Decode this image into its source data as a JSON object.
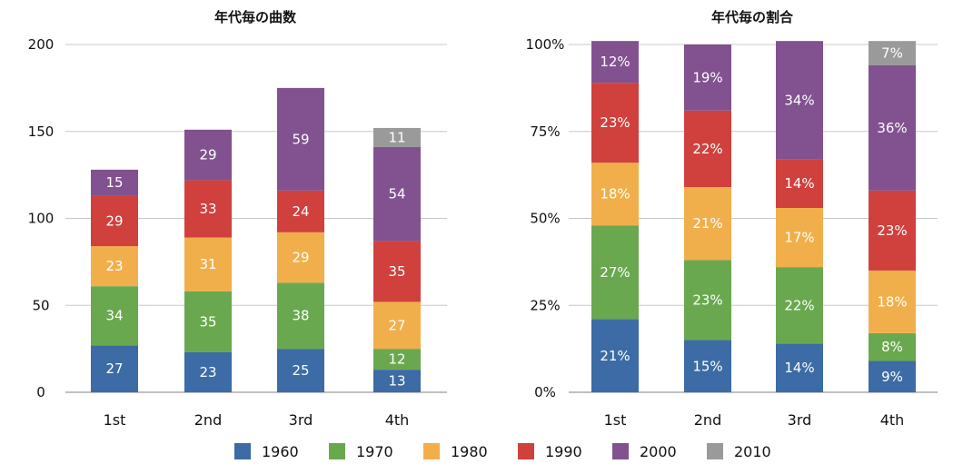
{
  "chart_data": [
    {
      "type": "bar",
      "stacked": true,
      "title": "年代毎の曲数",
      "categories": [
        "1st",
        "2nd",
        "3rd",
        "4th"
      ],
      "ylim": [
        0,
        200
      ],
      "yticks": [
        "0",
        "50",
        "100",
        "150",
        "200"
      ],
      "series": [
        {
          "name": "1960",
          "values": [
            27,
            23,
            25,
            13
          ],
          "labels": [
            "27",
            "23",
            "25",
            "13"
          ]
        },
        {
          "name": "1970",
          "values": [
            34,
            35,
            38,
            12
          ],
          "labels": [
            "34",
            "35",
            "38",
            "12"
          ]
        },
        {
          "name": "1980",
          "values": [
            23,
            31,
            29,
            27
          ],
          "labels": [
            "23",
            "31",
            "29",
            "27"
          ]
        },
        {
          "name": "1990",
          "values": [
            29,
            33,
            24,
            35
          ],
          "labels": [
            "29",
            "33",
            "24",
            "35"
          ]
        },
        {
          "name": "2000",
          "values": [
            15,
            29,
            59,
            54
          ],
          "labels": [
            "15",
            "29",
            "59",
            "54"
          ]
        },
        {
          "name": "2010",
          "values": [
            0,
            0,
            0,
            11
          ],
          "labels": [
            "",
            "",
            "",
            "11"
          ]
        }
      ]
    },
    {
      "type": "bar",
      "stacked": true,
      "title": "年代毎の割合",
      "categories": [
        "1st",
        "2nd",
        "3rd",
        "4th"
      ],
      "ylim": [
        0,
        100
      ],
      "yticks": [
        "0%",
        "25%",
        "50%",
        "75%",
        "100%"
      ],
      "series": [
        {
          "name": "1960",
          "values": [
            21,
            15,
            14,
            9
          ],
          "labels": [
            "21%",
            "15%",
            "14%",
            "9%"
          ]
        },
        {
          "name": "1970",
          "values": [
            27,
            23,
            22,
            8
          ],
          "labels": [
            "27%",
            "23%",
            "22%",
            "8%"
          ]
        },
        {
          "name": "1980",
          "values": [
            18,
            21,
            17,
            18
          ],
          "labels": [
            "18%",
            "21%",
            "17%",
            "18%"
          ]
        },
        {
          "name": "1990",
          "values": [
            23,
            22,
            14,
            23
          ],
          "labels": [
            "23%",
            "22%",
            "14%",
            "23%"
          ]
        },
        {
          "name": "2000",
          "values": [
            12,
            19,
            34,
            36
          ],
          "labels": [
            "12%",
            "19%",
            "34%",
            "36%"
          ]
        },
        {
          "name": "2010",
          "values": [
            0,
            0,
            0,
            7
          ],
          "labels": [
            "",
            "",
            "",
            "7%"
          ]
        }
      ]
    }
  ],
  "legend": {
    "items": [
      {
        "name": "1960",
        "color": "#3c6ba5"
      },
      {
        "name": "1970",
        "color": "#6aa84f"
      },
      {
        "name": "1980",
        "color": "#f1af4b"
      },
      {
        "name": "1990",
        "color": "#d0403d"
      },
      {
        "name": "2000",
        "color": "#81528f"
      },
      {
        "name": "2010",
        "color": "#9a9a9a"
      }
    ]
  }
}
